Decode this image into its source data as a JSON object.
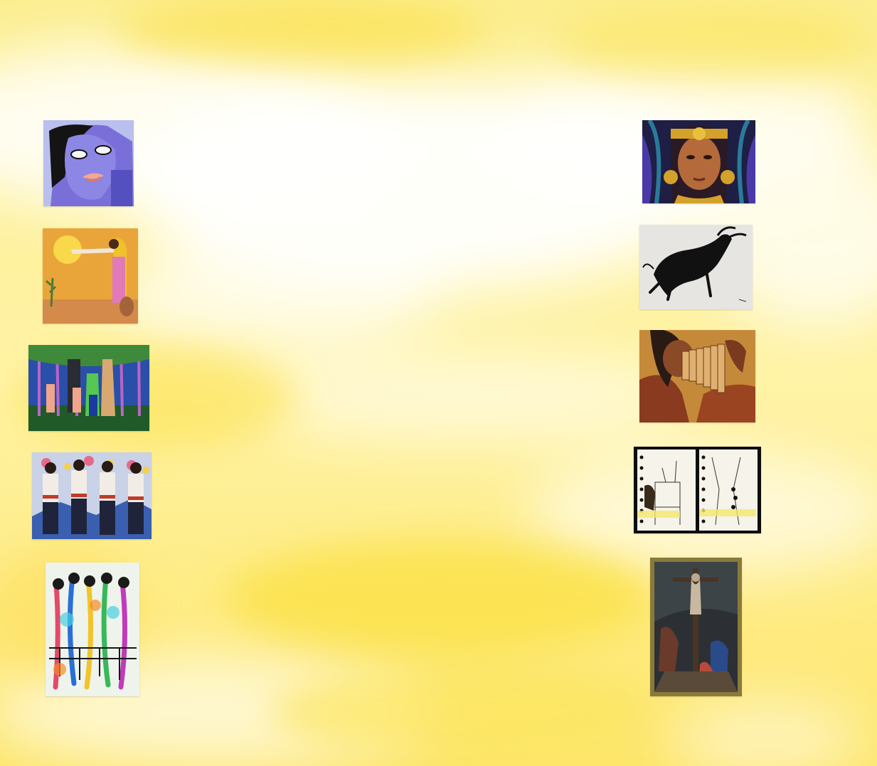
{
  "background": {
    "base_color": "#fff7c2",
    "cloud_color": "#ffffff",
    "deep_yellow": "#fbe043"
  },
  "gallery": {
    "left_column": [
      {
        "id": "l1",
        "icon": "purple-face-portrait-icon"
      },
      {
        "id": "l2",
        "icon": "woman-with-sun-painting-icon"
      },
      {
        "id": "l3",
        "icon": "forest-figures-jaguar-painting-icon"
      },
      {
        "id": "l4",
        "icon": "dancers-with-flowers-painting-icon"
      },
      {
        "id": "l5",
        "icon": "abstract-colorful-figures-painting-icon"
      }
    ],
    "right_column": [
      {
        "id": "r1",
        "icon": "aztec-woman-portrait-icon"
      },
      {
        "id": "r2",
        "icon": "black-ink-bull-drawing-icon"
      },
      {
        "id": "r3",
        "icon": "panpipe-player-painting-icon"
      },
      {
        "id": "r4",
        "icon": "sketchbook-drawings-icon"
      },
      {
        "id": "r5",
        "icon": "crucifixion-painting-icon"
      }
    ]
  }
}
